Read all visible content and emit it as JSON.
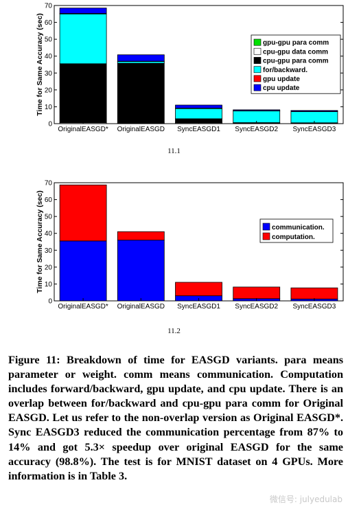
{
  "chart_data": [
    {
      "type": "bar",
      "stacked": true,
      "title": "",
      "xlabel": "",
      "ylabel": "Time for Same Accuracy (sec)",
      "ylim": [
        0,
        70
      ],
      "yticks": [
        0,
        10,
        20,
        30,
        40,
        50,
        60,
        70
      ],
      "categories": [
        "OriginalEASGD*",
        "OriginalEASGD",
        "SyncEASGD1",
        "SyncEASGD2",
        "SyncEASGD3"
      ],
      "legend_position": "right",
      "series": [
        {
          "name": "gpu-gpu para comm",
          "color": "#00e000",
          "values": [
            0,
            0,
            0,
            0.3,
            0.2
          ]
        },
        {
          "name": "cpu-gpu data comm",
          "color": "#ffffff",
          "values": [
            0.5,
            0.3,
            0.4,
            0.3,
            0.3
          ]
        },
        {
          "name": "cpu-gpu para comm",
          "color": "#000000",
          "values": [
            35,
            35.5,
            2.5,
            0,
            0
          ]
        },
        {
          "name": "for/backward.",
          "color": "#00ffff",
          "values": [
            29.5,
            1,
            6,
            6.9,
            6.6
          ]
        },
        {
          "name": "gpu update",
          "color": "#ff0000",
          "values": [
            0.3,
            0.2,
            0.3,
            0.2,
            0.2
          ]
        },
        {
          "name": "cpu update",
          "color": "#0000ff",
          "values": [
            3.2,
            3.8,
            1.8,
            0.5,
            0.5
          ]
        }
      ]
    },
    {
      "type": "bar",
      "stacked": true,
      "title": "",
      "xlabel": "",
      "ylabel": "Time for Same Accuracy (sec)",
      "ylim": [
        0,
        70
      ],
      "yticks": [
        0,
        10,
        20,
        30,
        40,
        50,
        60,
        70
      ],
      "categories": [
        "OriginalEASGD*",
        "OriginalEASGD",
        "SyncEASGD1",
        "SyncEASGD2",
        "SyncEASGD3"
      ],
      "legend_position": "right",
      "series": [
        {
          "name": "communication.",
          "color": "#0000ff",
          "values": [
            35.5,
            36,
            3,
            1.3,
            1.1
          ]
        },
        {
          "name": "computation.",
          "color": "#ff0000",
          "values": [
            33.2,
            5,
            8,
            6.9,
            6.6
          ]
        }
      ]
    }
  ],
  "subfig_labels": [
    "11.1",
    "11.2"
  ],
  "caption": "Figure 11: Breakdown of time for EASGD variants. para means parameter or weight. comm means communication. Computation includes forward/backward, gpu update, and cpu update. There is an overlap between for/backward and cpu-gpu para comm for Original EASGD. Let us refer to the non-overlap version as Original EASGD*. Sync EASGD3 reduced the communication percentage from 87% to 14% and got 5.3× speedup over original EASGD for the same accuracy (98.8%). The test is for MNIST dataset on 4 GPUs. More information is in Table 3.",
  "watermark": "微信号: julyedulab"
}
